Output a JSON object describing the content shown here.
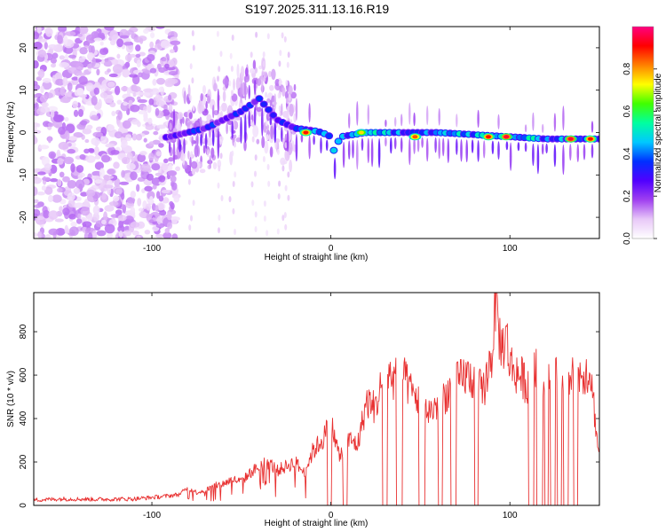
{
  "figure_title": "S197.2025.311.13.16.R19",
  "chart_data": [
    {
      "type": "heatmap",
      "title": "S197.2025.311.13.16.R19",
      "xlabel": "Height of straight line (km)",
      "ylabel": "Frequency (Hz)",
      "xlim": [
        -166,
        150
      ],
      "ylim": [
        -25,
        25
      ],
      "xticks": [
        -100,
        0,
        100
      ],
      "yticks": [
        -20,
        -10,
        0,
        10,
        20
      ],
      "colorbar": {
        "label": "Normalized spectral amplitude",
        "range": [
          0,
          1
        ],
        "ticks": [
          0.0,
          0.2,
          0.4,
          0.6,
          0.8
        ],
        "colormap": [
          "#ffffff",
          "#e8c8f8",
          "#a040f0",
          "#5000ff",
          "#0030ff",
          "#00c8ff",
          "#00ffa0",
          "#40ff00",
          "#ffff00",
          "#ff8000",
          "#ff0000",
          "#ff0080"
        ]
      },
      "ridge": {
        "description": "dominant frequency ridge",
        "frequency_hz": [
          -1.5,
          -1,
          0,
          1,
          3,
          5,
          8,
          3,
          1,
          0.5,
          0,
          -1,
          -5,
          -1,
          0,
          0,
          0,
          -0.5,
          -1,
          -1.5,
          -1.5,
          -1.5
        ],
        "height_km": [
          -100,
          -90,
          -80,
          -70,
          -60,
          -50,
          -40,
          -30,
          -20,
          -10,
          -5,
          0,
          2,
          5,
          20,
          40,
          60,
          80,
          100,
          120,
          135,
          150
        ]
      },
      "hotspots": [
        {
          "height_km": -14,
          "frequency_hz": 0,
          "amplitude": 0.9
        },
        {
          "height_km": 17,
          "frequency_hz": 0,
          "amplitude": 0.75
        },
        {
          "height_km": 47,
          "frequency_hz": -1,
          "amplitude": 0.85
        },
        {
          "height_km": 88,
          "frequency_hz": -1,
          "amplitude": 0.9
        },
        {
          "height_km": 98,
          "frequency_hz": -1,
          "amplitude": 0.95
        },
        {
          "height_km": 134,
          "frequency_hz": -1.5,
          "amplitude": 0.95
        },
        {
          "height_km": 145,
          "frequency_hz": -1.5,
          "amplitude": 0.9
        }
      ]
    },
    {
      "type": "line",
      "xlabel": "Height of straight line (km)",
      "ylabel": "SNR (10 * v/v)",
      "xlim": [
        -166,
        150
      ],
      "ylim": [
        0,
        980
      ],
      "xticks": [
        -100,
        0,
        100
      ],
      "yticks": [
        0,
        200,
        400,
        600,
        800
      ],
      "color": "#e83030",
      "series": [
        {
          "name": "SNR",
          "x": [
            -166,
            -150,
            -130,
            -110,
            -95,
            -85,
            -80,
            -75,
            -70,
            -65,
            -60,
            -55,
            -50,
            -45,
            -40,
            -35,
            -30,
            -25,
            -20,
            -15,
            -10,
            -5,
            0,
            5,
            10,
            15,
            20,
            25,
            30,
            35,
            40,
            45,
            50,
            55,
            60,
            65,
            70,
            75,
            80,
            85,
            90,
            92,
            95,
            98,
            100,
            105,
            110,
            115,
            120,
            125,
            130,
            135,
            140,
            145,
            150
          ],
          "y": [
            25,
            30,
            28,
            30,
            40,
            50,
            80,
            60,
            70,
            90,
            100,
            120,
            110,
            150,
            180,
            200,
            160,
            180,
            200,
            150,
            250,
            300,
            380,
            220,
            300,
            280,
            480,
            450,
            620,
            580,
            600,
            520,
            480,
            430,
            470,
            520,
            560,
            600,
            580,
            520,
            700,
            960,
            720,
            780,
            650,
            600,
            560,
            620,
            590,
            600,
            580,
            600,
            610,
            620,
            200
          ]
        }
      ]
    }
  ]
}
